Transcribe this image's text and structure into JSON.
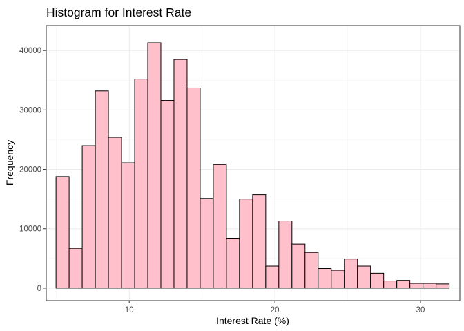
{
  "chart_data": {
    "type": "bar",
    "title": "Histogram for Interest Rate",
    "xlabel": "Interest Rate (%)",
    "ylabel": "Frequency",
    "bin_width": 0.9,
    "bins_x_center": [
      5.42,
      6.32,
      7.22,
      8.12,
      9.02,
      9.92,
      10.82,
      11.72,
      12.62,
      13.52,
      14.42,
      15.32,
      16.22,
      17.12,
      18.02,
      18.92,
      19.82,
      20.72,
      21.62,
      22.52,
      23.42,
      24.32,
      25.22,
      26.12,
      27.02,
      27.92,
      28.82,
      29.72,
      30.62,
      31.52
    ],
    "values": [
      18800,
      6700,
      24000,
      33200,
      25400,
      21100,
      35200,
      41300,
      31600,
      38500,
      33700,
      15100,
      20800,
      8400,
      15000,
      15700,
      3700,
      11300,
      7400,
      6000,
      3300,
      3000,
      4900,
      3700,
      2500,
      1200,
      1300,
      800,
      800,
      700
    ],
    "xlim": [
      4.3,
      32.7
    ],
    "ylim": [
      -2100,
      44200
    ],
    "x_ticks": [
      10,
      20,
      30
    ],
    "x_tick_labels": [
      "10",
      "20",
      "30"
    ],
    "y_ticks": [
      0,
      10000,
      20000,
      30000,
      40000
    ],
    "y_tick_labels": [
      "0",
      "10000",
      "20000",
      "30000",
      "40000"
    ],
    "fill_color": "#ffc0cb",
    "outline_color": "#000000",
    "grid": true
  }
}
